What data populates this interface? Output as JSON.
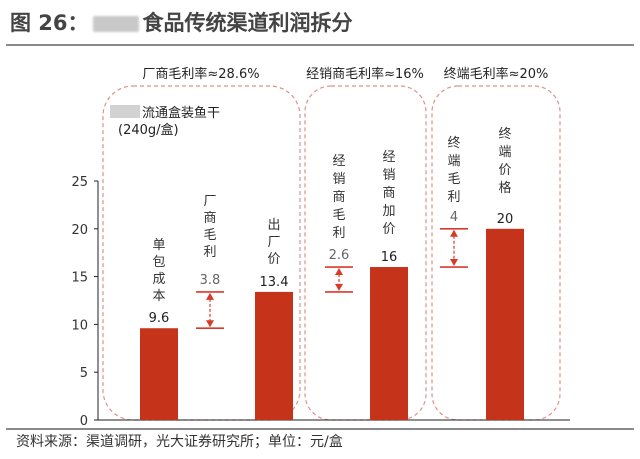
{
  "figure": {
    "title_prefix": "图 26：",
    "title_suffix": "食品传统渠道利润拆分",
    "source": "资料来源：渠道调研，光大证券研究所；单位：元/盒"
  },
  "colors": {
    "bar": "#c4331a",
    "arrow": "#d83a2a",
    "box_border": "#e0908a",
    "axis": "#222222"
  },
  "chart_data": {
    "type": "bar",
    "categories": [
      "单包成本",
      "厂商毛利",
      "出厂价",
      "经销商毛利",
      "经销商加价",
      "终端毛利",
      "终端价格"
    ],
    "bars": [
      {
        "label": "单包成本",
        "value": 9.6,
        "value_label": "9.6"
      },
      {
        "label": "出厂价",
        "value": 13.4,
        "value_label": "13.4"
      },
      {
        "label": "经销商加价",
        "value": 16,
        "value_label": "16"
      },
      {
        "label": "终端价格",
        "value": 20,
        "value_label": "20"
      }
    ],
    "margins": [
      {
        "label": "厂商毛利",
        "from": 9.6,
        "to": 13.4,
        "value_label": "3.8"
      },
      {
        "label": "经销商毛利",
        "from": 13.4,
        "to": 16,
        "value_label": "2.6"
      },
      {
        "label": "终端毛利",
        "from": 16,
        "to": 20,
        "value_label": "4"
      }
    ],
    "groups": [
      {
        "header": "厂商毛利率≈28.6%",
        "product_line1": "流通盒装鱼干",
        "product_line2": "(240g/盒)"
      },
      {
        "header": "经销商毛利率≈16%"
      },
      {
        "header": "终端毛利率≈20%"
      }
    ],
    "ylim": [
      0,
      25
    ],
    "yticks": [
      0,
      5,
      10,
      15,
      20,
      25
    ],
    "grid": false
  }
}
